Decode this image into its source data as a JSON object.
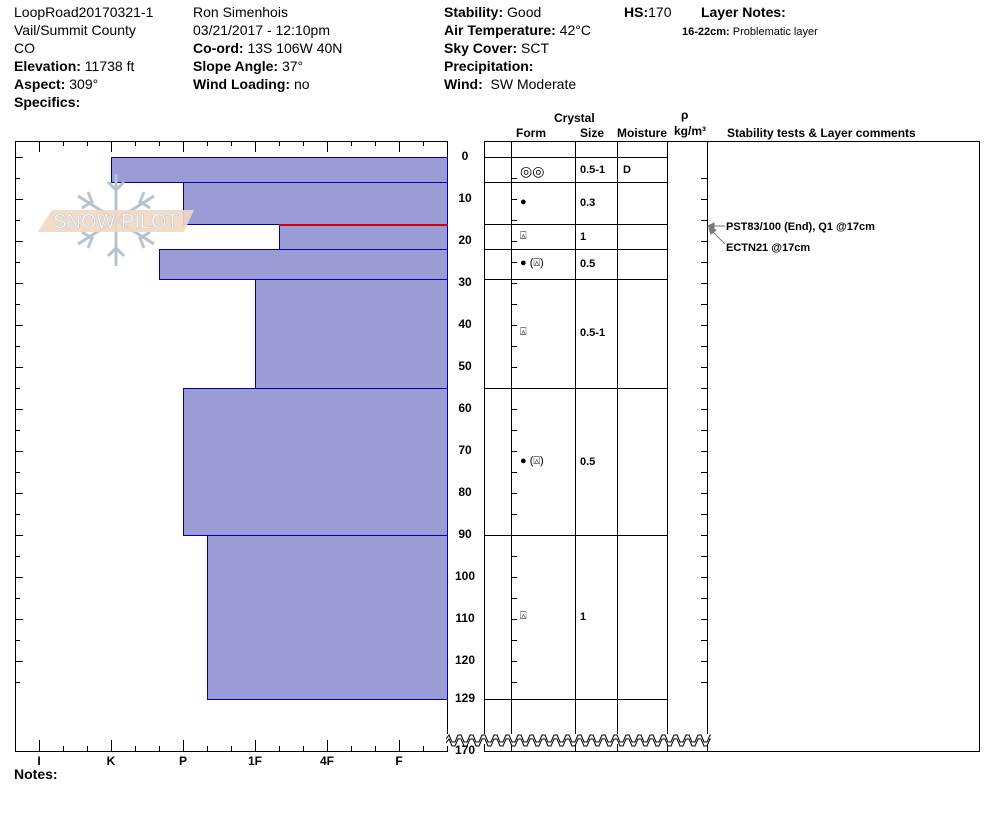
{
  "header": {
    "site": "LoopRoad20170321-1",
    "location": "Vail/Summit County",
    "state": "CO",
    "elevation_label": "Elevation:",
    "elevation": "11738 ft",
    "aspect_label": "Aspect:",
    "aspect": "309°",
    "specifics_label": "Specifics:",
    "observer": "Ron Simenhois",
    "datetime": "03/21/2017 - 12:10pm",
    "coord_label": "Co-ord:",
    "coord": "13S 106W 40N",
    "slope_label": "Slope Angle:",
    "slope": "37°",
    "wind_loading_label": "Wind Loading:",
    "wind_loading": "no",
    "stability_label": "Stability:",
    "stability": "Good",
    "air_temp_label": "Air Temperature:",
    "air_temp": "42°C",
    "sky_label": "Sky Cover:",
    "sky": "SCT",
    "precip_label": "Precipitation:",
    "wind_label": "Wind:",
    "wind": "SW Moderate",
    "hs_label": "HS:",
    "hs": "170",
    "layer_notes_label": "Layer Notes:",
    "layer_note_range": "16-22cm:",
    "layer_note_text": "Problematic layer"
  },
  "table_headers": {
    "crystal": "Crystal",
    "form": "Form",
    "size": "Size",
    "moisture": "Moisture",
    "rho": "ρ",
    "density": "kg/m³",
    "comments": "Stability tests & Layer comments"
  },
  "notes_label": "Notes:",
  "watermark": "SNOW PILOT",
  "colors": {
    "layer_fill": "#9b9bd6",
    "layer_border": "#0000a0",
    "problem_layer": "#d00000"
  },
  "chart_data": {
    "type": "bar",
    "orientation": "horizontal",
    "xlabel": "",
    "ylabel": "",
    "hardness_ticks": [
      "I",
      "K",
      "P",
      "1F",
      "4F",
      "F"
    ],
    "depth_ticks": [
      "0",
      "10",
      "20",
      "30",
      "40",
      "50",
      "60",
      "70",
      "80",
      "90",
      "100",
      "110",
      "120",
      "129",
      "170"
    ],
    "depth_range": [
      0,
      170
    ],
    "axis_break": [
      129,
      170
    ],
    "layers": [
      {
        "top": 0,
        "bottom": 6,
        "hardness": "K",
        "form": "double-circle",
        "form_text": "◎◎",
        "size": "0.5-1",
        "moisture": "D"
      },
      {
        "top": 6,
        "bottom": 16,
        "hardness": "P",
        "form": "rounded",
        "form_text": "●",
        "size": "0.3",
        "moisture": ""
      },
      {
        "top": 16,
        "bottom": 22,
        "hardness": "1F-",
        "form": "faceted-rounded",
        "form_text": "⍓",
        "size": "1",
        "moisture": "",
        "problem": true
      },
      {
        "top": 22,
        "bottom": 29,
        "hardness": "P+",
        "form": "rounded(faceted-rounded)",
        "form_text": "● (⍓)",
        "size": "0.5",
        "moisture": ""
      },
      {
        "top": 29,
        "bottom": 55,
        "hardness": "1F",
        "form": "faceted-rounded",
        "form_text": "⍓",
        "size": "0.5-1",
        "moisture": ""
      },
      {
        "top": 55,
        "bottom": 90,
        "hardness": "P",
        "form": "rounded(faceted-rounded)",
        "form_text": "● (⍓)",
        "size": "0.5",
        "moisture": ""
      },
      {
        "top": 90,
        "bottom": 129,
        "hardness": "P-",
        "form": "faceted-rounded",
        "form_text": "⍓",
        "size": "1",
        "moisture": ""
      }
    ],
    "stability_tests": [
      {
        "depth": 17,
        "text": "PST83/100 (End), Q1 @17cm"
      },
      {
        "depth": 17,
        "text": "ECTN21 @17cm"
      }
    ]
  }
}
